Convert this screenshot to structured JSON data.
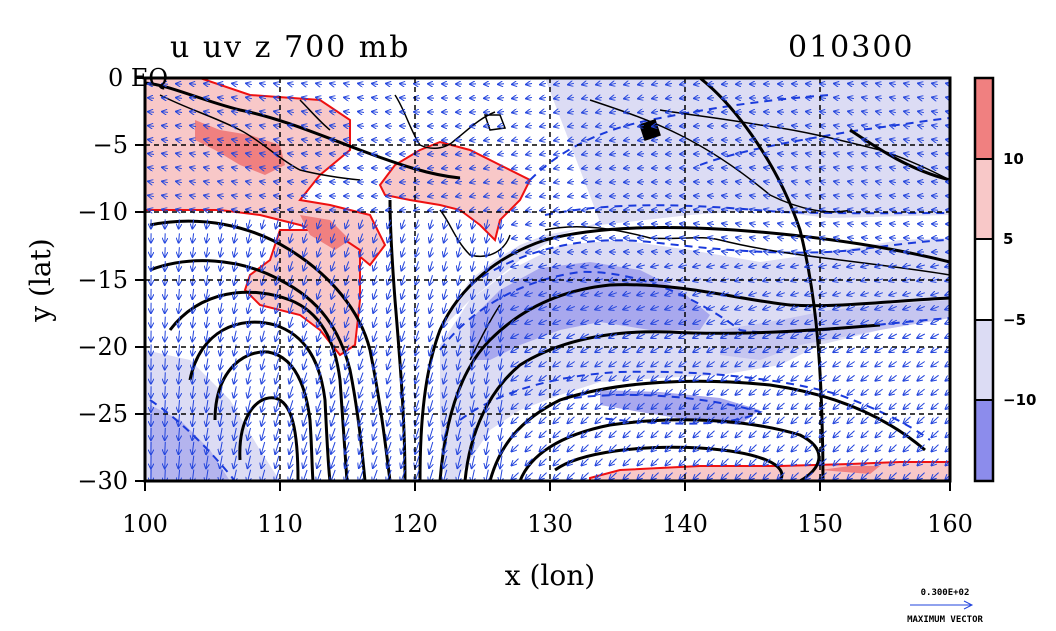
{
  "header": {
    "title": "u uv z 700 mb",
    "date_label": "010300"
  },
  "axes": {
    "x_label": "x (lon)",
    "y_label": "y (lat)",
    "x_ticks": [
      "100",
      "110",
      "120",
      "130",
      "140",
      "150",
      "160"
    ],
    "y_ticks": [
      "0 EQ",
      "−5",
      "−10",
      "−15",
      "−20",
      "−25",
      "−30"
    ],
    "x_range": [
      100,
      160
    ],
    "y_range": [
      -30,
      0
    ]
  },
  "colorbar": {
    "tick_labels": [
      "10",
      "5",
      "−5",
      "−10"
    ],
    "bins": [
      {
        "color": "#f08080"
      },
      {
        "color": "#f8c8c8"
      },
      {
        "color": "#ffffff"
      },
      {
        "color": "#dcdcf4"
      },
      {
        "color": "#8c8cec"
      }
    ]
  },
  "vector_key": {
    "value_label": "0.300E+02",
    "caption": "MAXIMUM VECTOR"
  },
  "colors": {
    "positive_fill": "#f8c8c8",
    "positive_strong": "#f08080",
    "positive_line": "#ee1111",
    "negative_fill": "#dcdcf4",
    "negative_strong": "#9c9cee",
    "negative_line": "#1a3adc",
    "vector": "#2244dd",
    "height_contour": "#000000"
  }
}
